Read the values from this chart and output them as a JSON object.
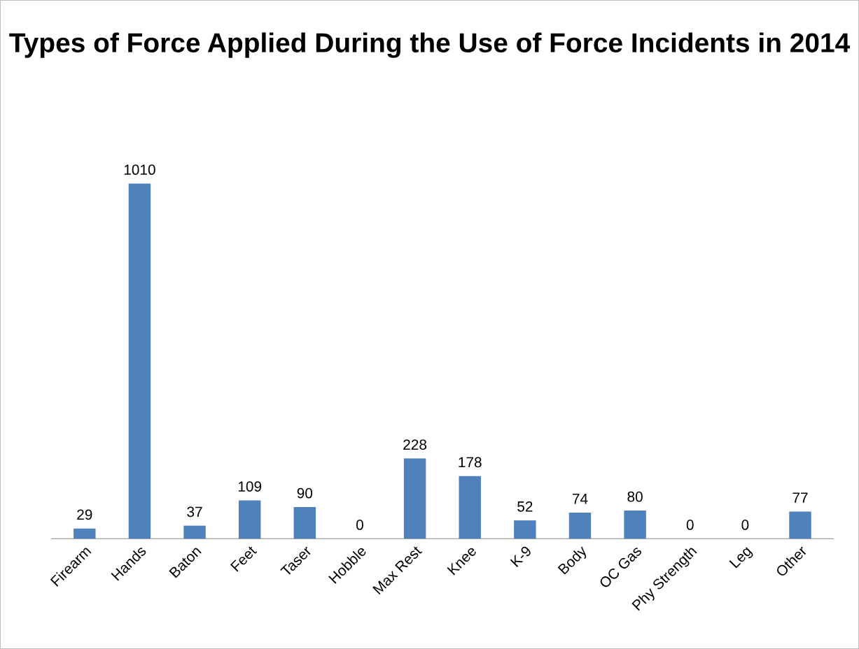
{
  "chart_data": {
    "type": "bar",
    "title": "Types of Force Applied During the Use of Force Incidents in 2014",
    "categories": [
      "Firearm",
      "Hands",
      "Baton",
      "Feet",
      "Taser",
      "Hobble",
      "Max Rest",
      "Knee",
      "K-9",
      "Body",
      "OC Gas",
      "Phy Strength",
      "Leg",
      "Other"
    ],
    "values": [
      29,
      1010,
      37,
      109,
      90,
      0,
      228,
      178,
      52,
      74,
      80,
      0,
      0,
      77
    ],
    "color": "#4f81bd",
    "data_labels": true
  }
}
